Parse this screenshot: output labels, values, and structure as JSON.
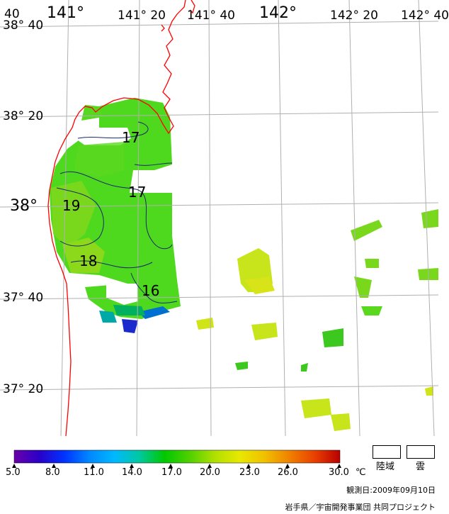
{
  "map": {
    "longitude_labels": [
      "141°",
      "141° 20",
      "141° 40",
      "142°",
      "142° 20",
      "142° 40"
    ],
    "latitude_labels": [
      "38° 40",
      "38° 20",
      "38°",
      "37° 40",
      "37° 20"
    ],
    "corner_label": "40"
  },
  "isotherm_labels": [
    "17",
    "17",
    "19",
    "18",
    "16"
  ],
  "legend": {
    "ticks": [
      "5.0",
      "8.0",
      "11.0",
      "14.0",
      "17.0",
      "20.0",
      "23.0",
      "26.0",
      "30.0"
    ],
    "unit": "℃",
    "colors": [
      "#6a00a8",
      "#2a00c8",
      "#0033ff",
      "#0088ff",
      "#00b8ff",
      "#00c8a0",
      "#00c800",
      "#50d000",
      "#b0e000",
      "#e8e800",
      "#f0c000",
      "#f08000",
      "#e84000",
      "#b80000"
    ],
    "land_label": "陸域",
    "cloud_label": "雲"
  },
  "footer": {
    "date": "観測日:2009年09月10日",
    "credit": "岩手県／宇宙開発事業団 共同プロジェクト"
  }
}
